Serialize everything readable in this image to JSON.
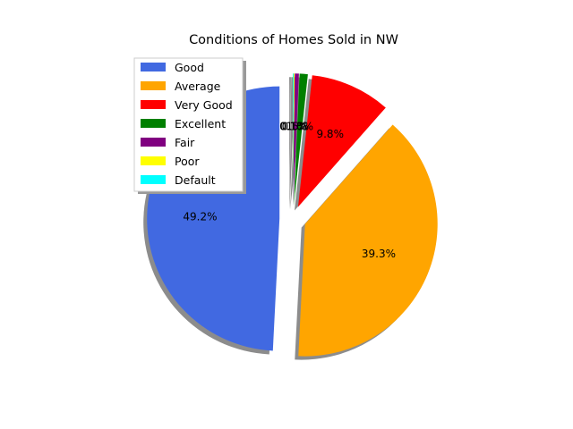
{
  "chart_data": {
    "type": "pie",
    "title": "Conditions of Homes Sold in NW",
    "labels": [
      "Good",
      "Average",
      "Very Good",
      "Excellent",
      "Fair",
      "Poor",
      "Default"
    ],
    "values": [
      49.2,
      39.3,
      9.8,
      1.0,
      0.5,
      0.1,
      0.1
    ],
    "display_labels": [
      "49.2%",
      "39.3%",
      "9.8%",
      "1.0%",
      "0.5%",
      "0.1%",
      "0.1%"
    ],
    "colors": [
      "#4169e1",
      "#ffa500",
      "#ff0000",
      "#008000",
      "#800080",
      "#ffff00",
      "#00ffff"
    ],
    "start_angle_deg": 90,
    "direction": "counterclockwise",
    "exploded": true,
    "shadow": true,
    "legend_position": "upper-left"
  }
}
